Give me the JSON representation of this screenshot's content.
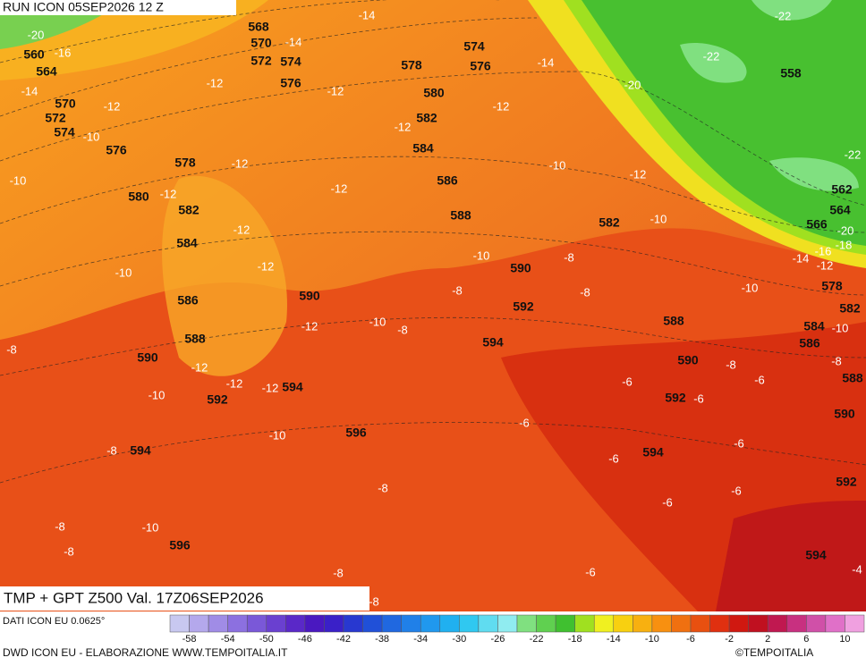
{
  "header": {
    "run": "RUN ICON 05SEP2026 12 Z",
    "product": "TMP + GPT Z500 Val. 17Z06SEP2026"
  },
  "height_labels": [
    568,
    570,
    572,
    574,
    576,
    560,
    564,
    570,
    572,
    574,
    576,
    578,
    580,
    582,
    584,
    586,
    588,
    590,
    592,
    594,
    594,
    596,
    596,
    590,
    578,
    574,
    576,
    580,
    582,
    584,
    586,
    588,
    590,
    592,
    594,
    582,
    588,
    590,
    592,
    594,
    558,
    562,
    564,
    566,
    578,
    582,
    584,
    586,
    588,
    590,
    592,
    594
  ],
  "temperature_labels": [
    -20,
    -16,
    -14,
    -12,
    -14,
    -14,
    -12,
    -12,
    -10,
    -12,
    -12,
    -12,
    -12,
    -10,
    -12,
    -12,
    -10,
    -12,
    -12,
    -12,
    -12,
    -10,
    -8,
    -10,
    -8,
    -8,
    -10,
    -8,
    -8,
    -8,
    -8,
    -6,
    -6,
    -6,
    -6,
    -6,
    -6,
    -6,
    -6,
    -6,
    -8,
    -8,
    -10,
    -10,
    -12,
    -14,
    -16,
    -18,
    -20,
    -22,
    -22,
    -22,
    -20,
    -14,
    -12,
    -10,
    -12,
    -10,
    -8,
    -8,
    -8,
    -8,
    -10,
    -10,
    -4
  ],
  "colorbar": {
    "colors": [
      "#c8c8f0",
      "#b4a8ec",
      "#a08ce6",
      "#8c70e0",
      "#7a58d8",
      "#6a40d0",
      "#5a28c8",
      "#4a18c0",
      "#3a20c8",
      "#2838d0",
      "#2050d8",
      "#2068e0",
      "#2080e8",
      "#2098ee",
      "#20b0f0",
      "#30c8f0",
      "#60dcf0",
      "#90ecf0",
      "#80e080",
      "#60d050",
      "#40c030",
      "#a0e020",
      "#f0f020",
      "#f8d010",
      "#f8b010",
      "#f89010",
      "#f07010",
      "#e85010",
      "#e03010",
      "#d01810",
      "#c01020",
      "#c01850",
      "#c83080",
      "#d050a8",
      "#e070c8",
      "#f0a0e0"
    ],
    "tick_labels": [
      -58,
      -54,
      -50,
      -46,
      -42,
      -38,
      -34,
      -30,
      -26,
      -22,
      -18,
      -14,
      -10,
      -6,
      -2,
      2,
      6,
      10
    ]
  },
  "footer": {
    "data_source": "DATI ICON EU 0.0625°",
    "credit": "DWD ICON EU - ELABORAZIONE WWW.TEMPOITALIA.IT",
    "copyright": "©TEMPOITALIA"
  }
}
